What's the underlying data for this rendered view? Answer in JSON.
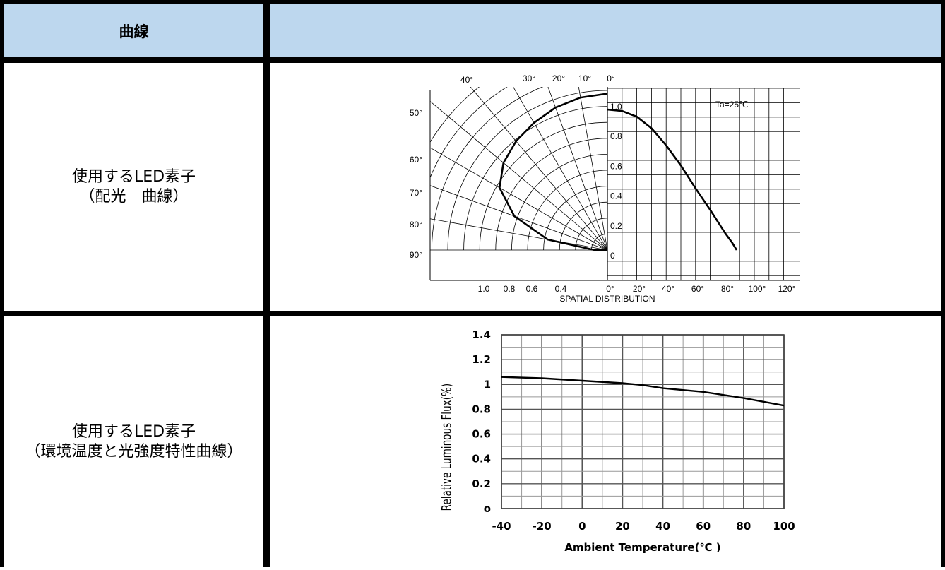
{
  "table": {
    "header": {
      "col1": "曲線",
      "col2": ""
    },
    "row1": {
      "label_line1": "使用するLED素子",
      "label_line2": "（配光　曲線）"
    },
    "row2": {
      "label_line1": "使用するLED素子",
      "label_line2": "（環境温度と光強度特性曲線）"
    }
  },
  "colors": {
    "header_bg": "#bdd7ee",
    "border": "#000000",
    "curve": "#000000"
  },
  "chart_data": [
    {
      "type": "polar-line",
      "title": "",
      "xlabel": "SPATIAL DISTRIBUTION",
      "annotation": "Ta=25℃",
      "angle_tick_labels": [
        "0°",
        "10°",
        "20°",
        "30°",
        "40°",
        "50°",
        "60°",
        "70°",
        "80°",
        "90°"
      ],
      "radial_tick_labels": [
        "1.0",
        "0.8",
        "0.6",
        "0.4"
      ],
      "intensity_tick_labels": [
        "1.0",
        "0.8",
        "0.6",
        "0.4",
        "0.2",
        "0"
      ],
      "angle_axis_labels": [
        "0°",
        "20°",
        "40°",
        "60°",
        "80°",
        "100°",
        "120°"
      ],
      "left_lobe": {
        "angles_deg": [
          0,
          10,
          20,
          30,
          40,
          50,
          60,
          70,
          80,
          90
        ],
        "relative_intensity": [
          0.98,
          0.97,
          0.95,
          0.92,
          0.89,
          0.85,
          0.78,
          0.62,
          0.38,
          0.08
        ]
      },
      "right_curve": {
        "angles_deg": [
          0,
          10,
          20,
          30,
          40,
          50,
          60,
          70,
          80,
          85,
          88
        ],
        "relative_intensity": [
          0.98,
          0.97,
          0.93,
          0.85,
          0.73,
          0.59,
          0.43,
          0.28,
          0.12,
          0.05,
          0.0
        ]
      },
      "grid": true
    },
    {
      "type": "line",
      "title": "",
      "xlabel": "Ambient Temperature(℃ )",
      "ylabel": "Relative Luminous Flux(%)",
      "x": [
        -40,
        -20,
        0,
        20,
        30,
        40,
        60,
        80,
        100
      ],
      "y": [
        1.06,
        1.05,
        1.03,
        1.01,
        0.995,
        0.97,
        0.94,
        0.89,
        0.83
      ],
      "xlim": [
        -40,
        100
      ],
      "ylim": [
        0,
        1.4
      ],
      "x_tick_labels": [
        "-40",
        "-20",
        "0",
        "20",
        "40",
        "60",
        "80",
        "100"
      ],
      "y_tick_labels": [
        "o",
        "0.2",
        "0.4",
        "0.6",
        "0.8",
        "1",
        "1.2",
        "1.4"
      ],
      "grid": true
    }
  ]
}
